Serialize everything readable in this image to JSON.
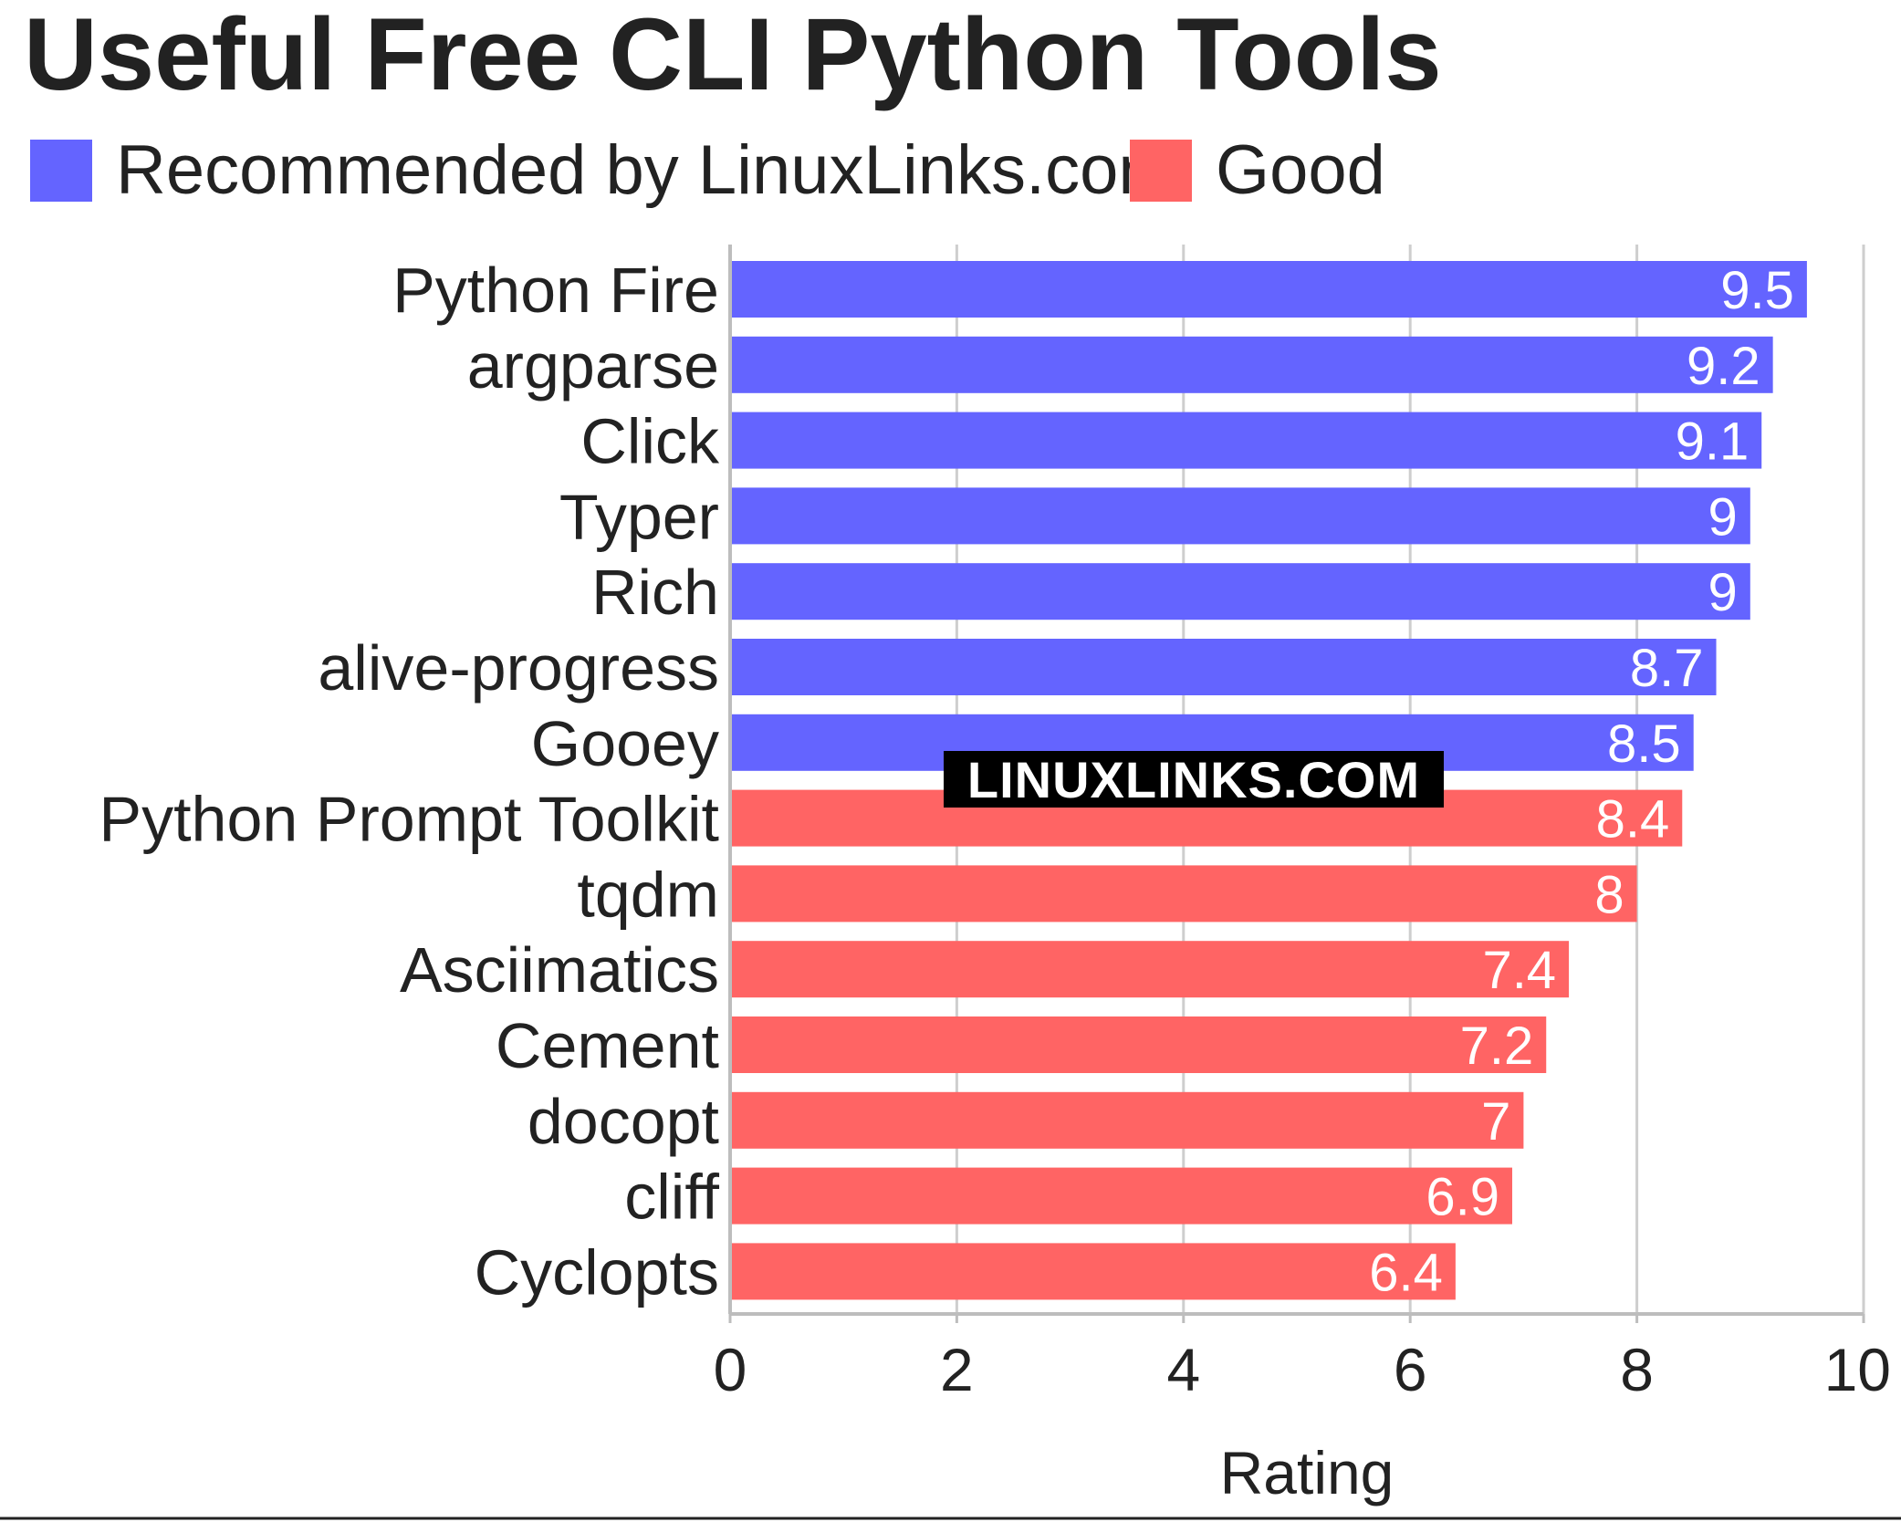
{
  "chart_data": {
    "type": "bar",
    "orientation": "horizontal",
    "title": "Useful Free CLI Python Tools",
    "xlabel": "Rating",
    "ylabel": "",
    "xlim": [
      0,
      10
    ],
    "xticks": [
      "0",
      "2",
      "4",
      "6",
      "8",
      "10"
    ],
    "xtick_values": [
      0,
      2,
      4,
      6,
      8,
      10
    ],
    "grid": true,
    "legend_placement": "top-left",
    "legend": [
      {
        "name": "Recommended by LinuxLinks.com",
        "color": "#6464ff"
      },
      {
        "name": "Good",
        "color": "#ff6464"
      }
    ],
    "categories": [
      "Python Fire",
      "argparse",
      "Click",
      "Typer",
      "Rich",
      "alive-progress",
      "Gooey",
      "Python Prompt Toolkit",
      "tqdm",
      "Asciimatics",
      "Cement",
      "docopt",
      "cliff",
      "Cyclopts"
    ],
    "values": [
      9.5,
      9.2,
      9.1,
      9,
      9,
      8.7,
      8.5,
      8.4,
      8,
      7.4,
      7.2,
      7,
      6.9,
      6.4
    ],
    "value_labels": [
      "9.5",
      "9.2",
      "9.1",
      "9",
      "9",
      "8.7",
      "8.5",
      "8.4",
      "8",
      "7.4",
      "7.2",
      "7",
      "6.9",
      "6.4"
    ],
    "groups": [
      0,
      0,
      0,
      0,
      0,
      0,
      0,
      1,
      1,
      1,
      1,
      1,
      1,
      1
    ]
  },
  "watermark": "LINUXLINKS.COM",
  "colors": {
    "gridline": "#bdbdbd",
    "axis": "#bdbdbd",
    "text": "#222222",
    "value_text": "#ffffff",
    "watermark_bg": "#000000"
  }
}
